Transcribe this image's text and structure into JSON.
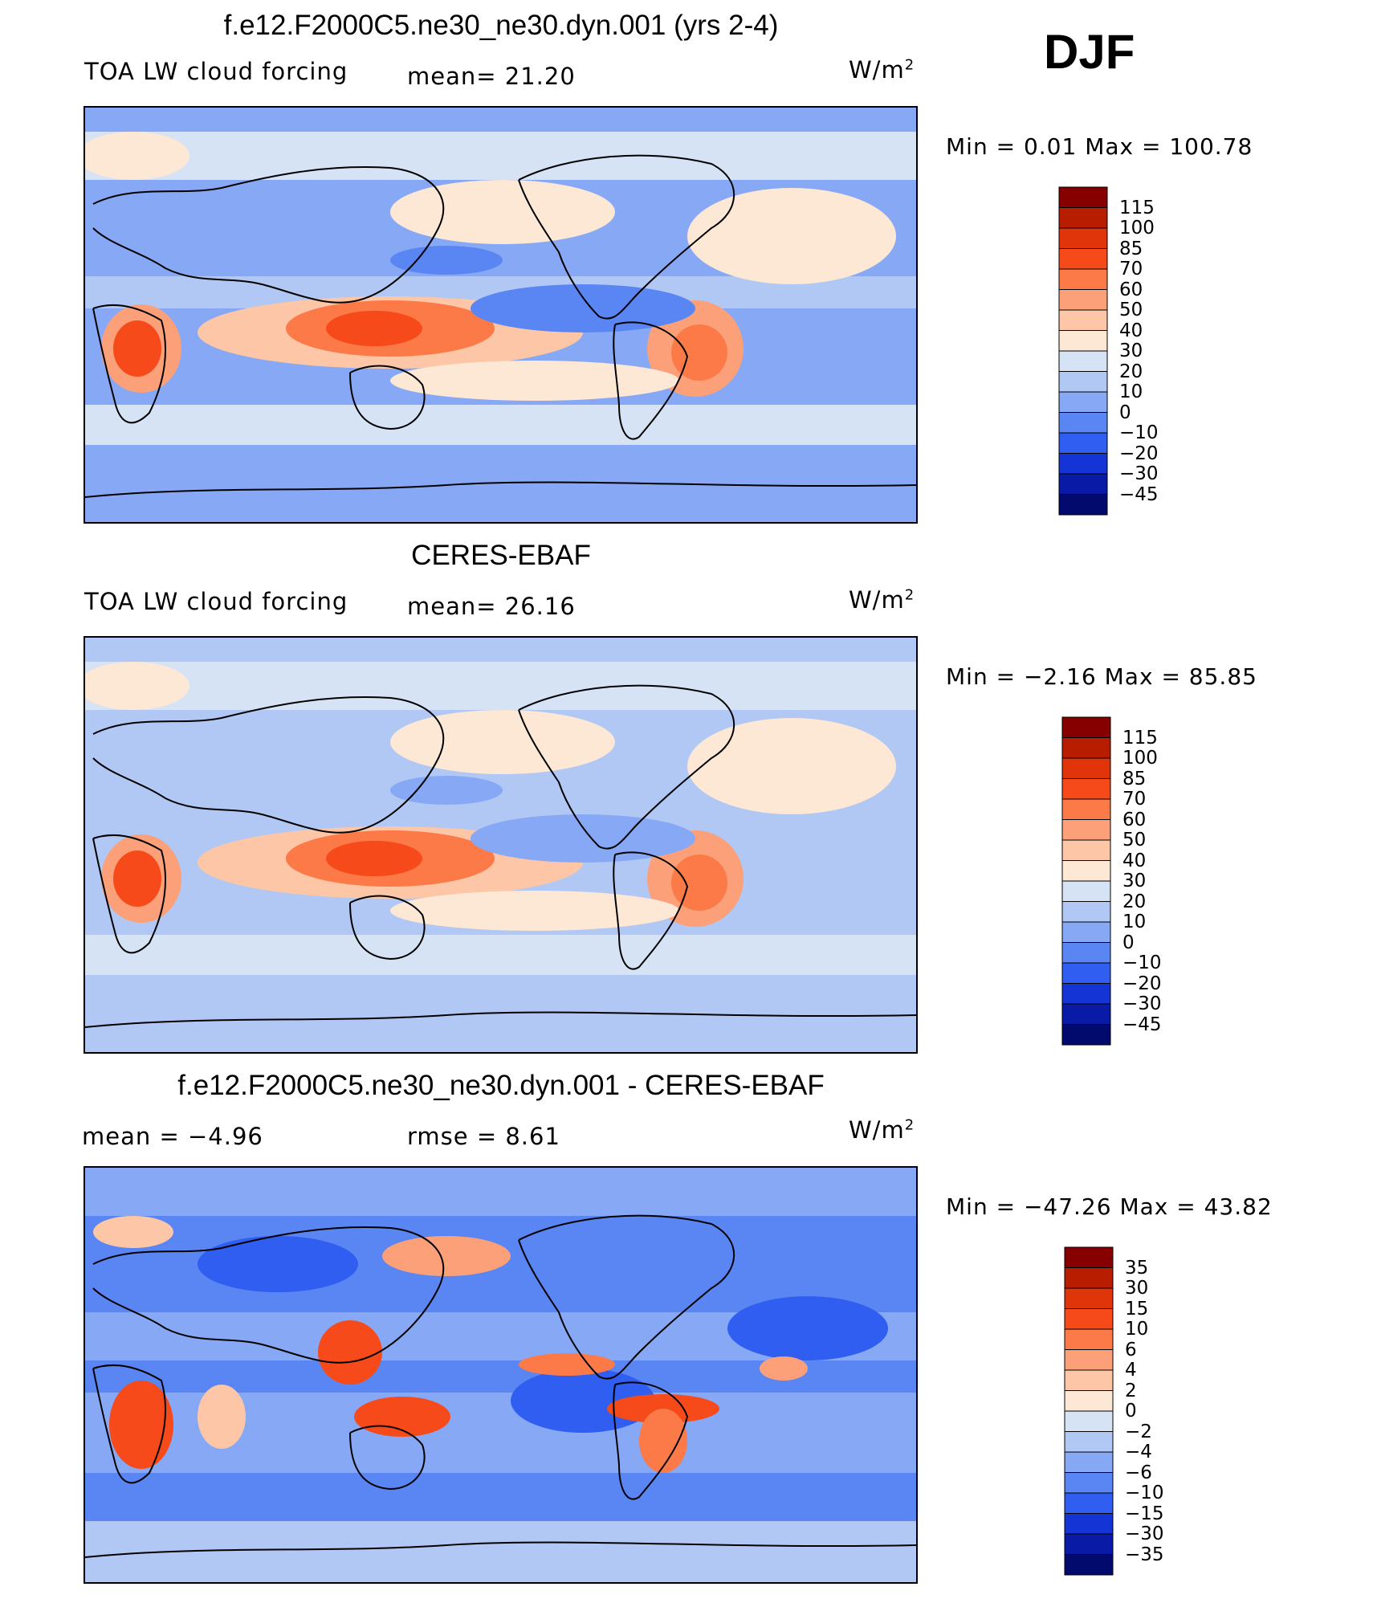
{
  "season": "DJF",
  "panels": [
    {
      "title": "f.e12.F2000C5.ne30_ne30.dyn.001 (yrs 2-4)",
      "left_label": "TOA LW cloud forcing",
      "stat1": "mean=   21.20",
      "stat2": "",
      "units": "W/m",
      "units_sup": "2",
      "minmax": "Min =    0.01 Max = 100.78",
      "colorbar_labels": [
        "115",
        "100",
        "85",
        "70",
        "60",
        "50",
        "40",
        "30",
        "20",
        "10",
        "0",
        "−10",
        "−20",
        "−30",
        "−45"
      ],
      "colorbar_colors": [
        "#870000",
        "#b81d00",
        "#e0340a",
        "#f74a1a",
        "#fb7a47",
        "#fca07a",
        "#fdc7a7",
        "#fde7d5",
        "#d5e3f4",
        "#b0c8f3",
        "#86a8f5",
        "#5a86f3",
        "#2f5ef0",
        "#1534d6",
        "#081aa6",
        "#030a6e"
      ],
      "chart_data": {
        "type": "heatmap",
        "title": "f.e12.F2000C5.ne30_ne30.dyn.001 (yrs 2-4)",
        "variable": "TOA LW cloud forcing",
        "units": "W/m2",
        "mean": 21.2,
        "min": 0.01,
        "max": 100.78,
        "levels": [
          -45,
          -30,
          -20,
          -10,
          0,
          10,
          20,
          30,
          40,
          50,
          60,
          70,
          85,
          100,
          115
        ]
      }
    },
    {
      "title": "CERES-EBAF",
      "left_label": "TOA LW cloud forcing",
      "stat1": "mean=   26.16",
      "stat2": "",
      "units": "W/m",
      "units_sup": "2",
      "minmax": "Min =   −2.16 Max =   85.85",
      "colorbar_labels": [
        "115",
        "100",
        "85",
        "70",
        "60",
        "50",
        "40",
        "30",
        "20",
        "10",
        "0",
        "−10",
        "−20",
        "−30",
        "−45"
      ],
      "colorbar_colors": [
        "#870000",
        "#b81d00",
        "#e0340a",
        "#f74a1a",
        "#fb7a47",
        "#fca07a",
        "#fdc7a7",
        "#fde7d5",
        "#d5e3f4",
        "#b0c8f3",
        "#86a8f5",
        "#5a86f3",
        "#2f5ef0",
        "#1534d6",
        "#081aa6",
        "#030a6e"
      ],
      "chart_data": {
        "type": "heatmap",
        "title": "CERES-EBAF",
        "variable": "TOA LW cloud forcing",
        "units": "W/m2",
        "mean": 26.16,
        "min": -2.16,
        "max": 85.85,
        "levels": [
          -45,
          -30,
          -20,
          -10,
          0,
          10,
          20,
          30,
          40,
          50,
          60,
          70,
          85,
          100,
          115
        ]
      }
    },
    {
      "title": "f.e12.F2000C5.ne30_ne30.dyn.001 - CERES-EBAF",
      "left_label": "mean =   −4.96",
      "stat1": "rmse =    8.61",
      "stat2": "",
      "units": "W/m",
      "units_sup": "2",
      "minmax": "Min = −47.26 Max =   43.82",
      "colorbar_labels": [
        "35",
        "30",
        "15",
        "10",
        "6",
        "4",
        "2",
        "0",
        "−2",
        "−4",
        "−6",
        "−10",
        "−15",
        "−30",
        "−35"
      ],
      "colorbar_colors": [
        "#870000",
        "#b81d00",
        "#e0340a",
        "#f74a1a",
        "#fb7a47",
        "#fca07a",
        "#fdc7a7",
        "#fde7d5",
        "#d5e3f4",
        "#b0c8f3",
        "#86a8f5",
        "#5a86f3",
        "#2f5ef0",
        "#1534d6",
        "#081aa6",
        "#030a6e"
      ],
      "chart_data": {
        "type": "heatmap",
        "title": "f.e12.F2000C5.ne30_ne30.dyn.001 - CERES-EBAF",
        "units": "W/m2",
        "mean": -4.96,
        "rmse": 8.61,
        "min": -47.26,
        "max": 43.82,
        "levels": [
          -35,
          -30,
          -15,
          -10,
          -6,
          -4,
          -2,
          0,
          2,
          4,
          6,
          10,
          15,
          30,
          35
        ]
      }
    }
  ]
}
